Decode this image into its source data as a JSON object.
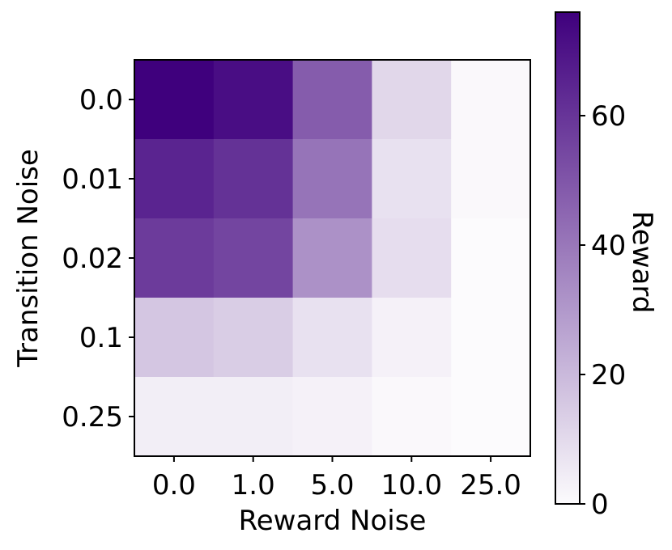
{
  "chart_data": {
    "type": "heatmap",
    "title": "",
    "xlabel": "Reward Noise",
    "ylabel": "Transition Noise",
    "x_categories": [
      "0.0",
      "1.0",
      "5.0",
      "10.0",
      "25.0"
    ],
    "y_categories": [
      "0.0",
      "0.01",
      "0.02",
      "0.1",
      "0.25"
    ],
    "values": [
      [
        76,
        72,
        48,
        11,
        1
      ],
      [
        65,
        61,
        41,
        8,
        1
      ],
      [
        58,
        55,
        32,
        9,
        0
      ],
      [
        16,
        14,
        8,
        3,
        0
      ],
      [
        4,
        4,
        3,
        1,
        0
      ]
    ],
    "colorbar": {
      "label": "Reward",
      "range": [
        0,
        76
      ],
      "ticks": [
        0,
        20,
        40,
        60
      ],
      "tick_labels": [
        "0",
        "20",
        "40",
        "60"
      ],
      "colormap": "Purples",
      "color_low": "#fcfbfd",
      "color_high": "#3f007d"
    },
    "grid": false
  }
}
